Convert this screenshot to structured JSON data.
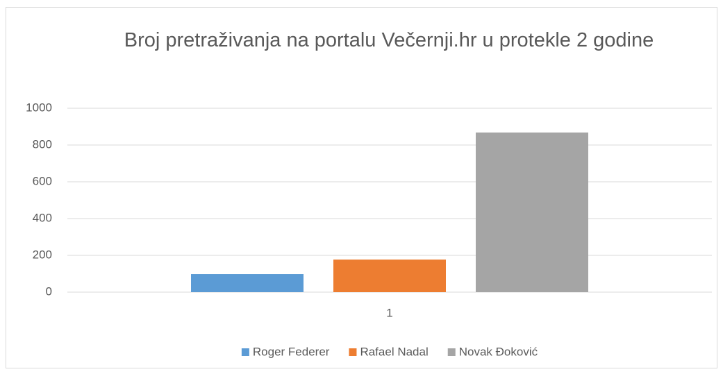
{
  "chart_data": {
    "type": "bar",
    "title": "Broj pretraživanja na portalu Večernji.hr u protekle 2 godine",
    "categories": [
      "1"
    ],
    "series": [
      {
        "name": "Roger Federer",
        "color": "#5b9bd5",
        "values": [
          98
        ]
      },
      {
        "name": "Rafael Nadal",
        "color": "#ed7d31",
        "values": [
          177
        ]
      },
      {
        "name": "Novak Đoković",
        "color": "#a5a5a5",
        "values": [
          868
        ]
      }
    ],
    "ylim": [
      0,
      1000
    ],
    "yticks": [
      0,
      200,
      400,
      600,
      800,
      1000
    ],
    "grid": true,
    "legend": "bottom"
  }
}
